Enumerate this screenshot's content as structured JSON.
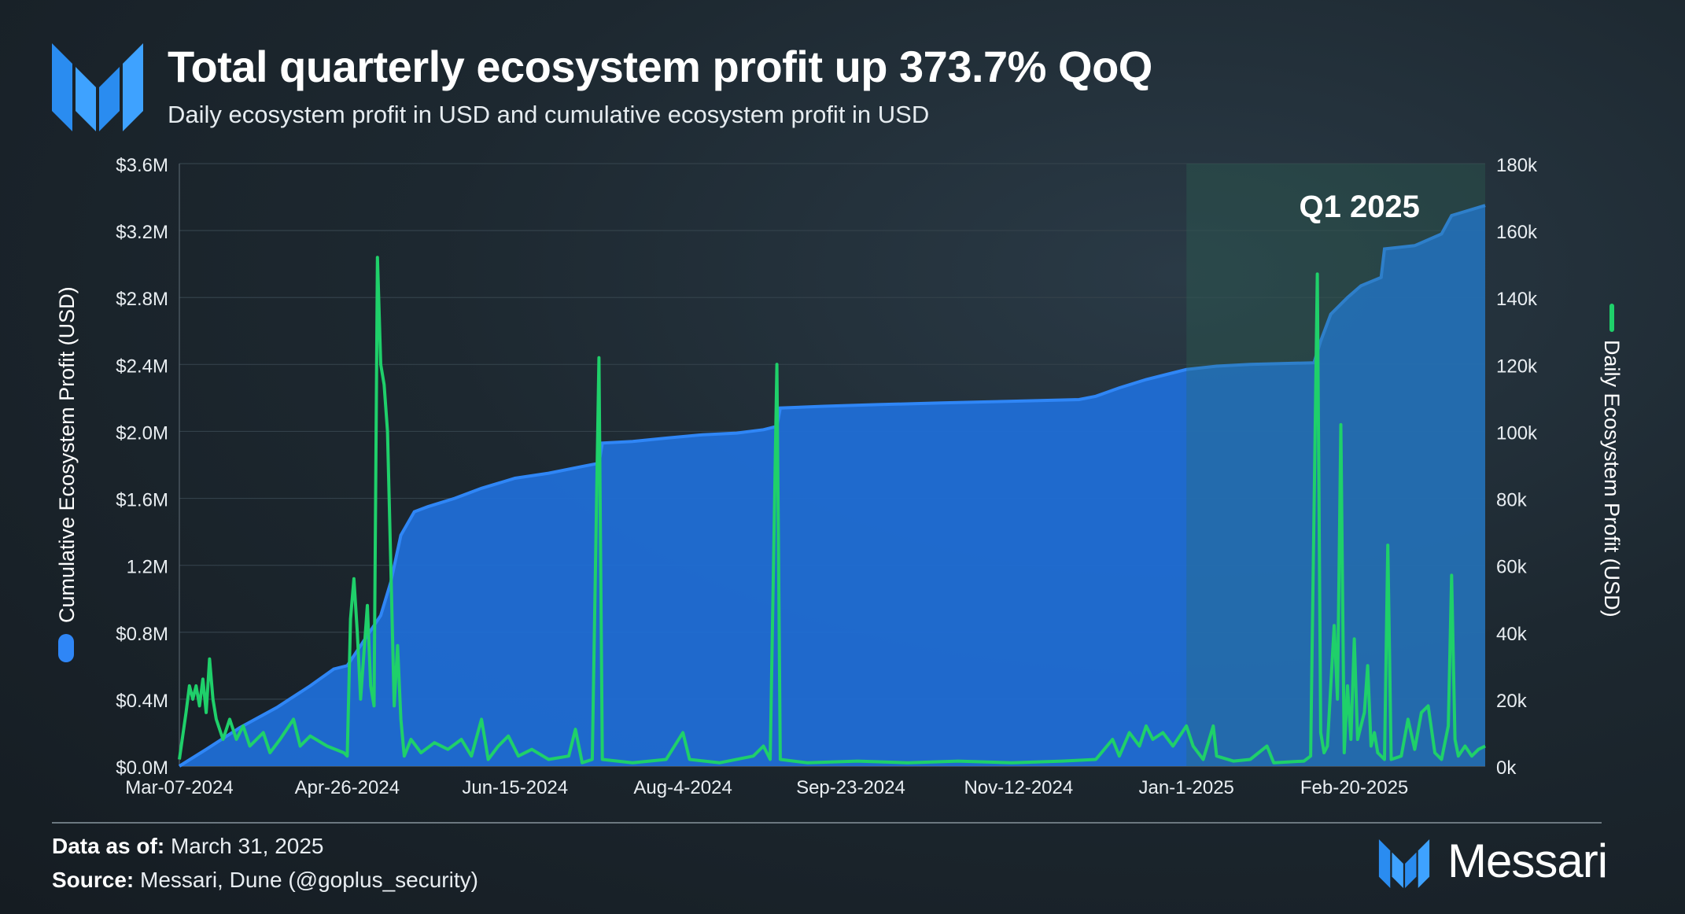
{
  "header": {
    "title": "Total quarterly ecosystem profit up 373.7% QoQ",
    "subtitle": "Daily ecosystem profit in USD and cumulative ecosystem profit in USD"
  },
  "footer": {
    "date_label": "Data as of:",
    "date_value": "March 31, 2025",
    "source_label": "Source:",
    "source_value": "Messari, Dune (@goplus_security)"
  },
  "brand": {
    "name": "Messari",
    "logo_icon": "messari-logo-icon"
  },
  "colors": {
    "cumulative_fill": "#1f6fd8",
    "cumulative_line": "#2f86f6",
    "daily_line": "#1fd06a",
    "q1_band": "#2d6e5a"
  },
  "chart_data": {
    "type": "area",
    "title": "Total quarterly ecosystem profit up 373.7% QoQ",
    "subtitle": "Daily ecosystem profit in USD and cumulative ecosystem profit in USD",
    "x_tick_labels": [
      "Mar-07-2024",
      "Apr-26-2024",
      "Jun-15-2024",
      "Aug-4-2024",
      "Sep-23-2024",
      "Nov-12-2024",
      "Jan-1-2025",
      "Feb-20-2025"
    ],
    "x_range": [
      "2024-03-07",
      "2025-03-31"
    ],
    "y_left_label": "Cumulative Ecosystem Profit (USD)",
    "y_left_ticks": [
      "$0.0M",
      "$0.4M",
      "$0.8M",
      "1.2M",
      "$1.6M",
      "$2.0M",
      "$2.4M",
      "$2.8M",
      "$3.2M",
      "$3.6M"
    ],
    "y_left_range": [
      0,
      3600000
    ],
    "y_right_label": "Daily Ecosystem Profit (USD)",
    "y_right_ticks": [
      "0k",
      "20k",
      "40k",
      "60k",
      "80k",
      "100k",
      "120k",
      "140k",
      "160k",
      "180k"
    ],
    "y_right_range": [
      0,
      180000
    ],
    "grid": true,
    "annotation": {
      "text": "Q1 2025",
      "start": "2025-01-01",
      "end": "2025-03-31"
    },
    "series": [
      {
        "name": "Cumulative Ecosystem Profit (USD)",
        "axis": "left",
        "style": "area",
        "points": [
          [
            "2024-03-07",
            0
          ],
          [
            "2024-03-15",
            100000
          ],
          [
            "2024-03-25",
            230000
          ],
          [
            "2024-04-05",
            350000
          ],
          [
            "2024-04-15",
            480000
          ],
          [
            "2024-04-22",
            580000
          ],
          [
            "2024-04-26",
            600000
          ],
          [
            "2024-05-01",
            750000
          ],
          [
            "2024-05-06",
            900000
          ],
          [
            "2024-05-09",
            1100000
          ],
          [
            "2024-05-12",
            1380000
          ],
          [
            "2024-05-16",
            1520000
          ],
          [
            "2024-05-20",
            1550000
          ],
          [
            "2024-05-28",
            1600000
          ],
          [
            "2024-06-05",
            1660000
          ],
          [
            "2024-06-15",
            1720000
          ],
          [
            "2024-06-25",
            1750000
          ],
          [
            "2024-07-05",
            1790000
          ],
          [
            "2024-07-10",
            1810000
          ],
          [
            "2024-07-11",
            1930000
          ],
          [
            "2024-07-20",
            1940000
          ],
          [
            "2024-07-30",
            1960000
          ],
          [
            "2024-08-10",
            1980000
          ],
          [
            "2024-08-20",
            1990000
          ],
          [
            "2024-08-28",
            2010000
          ],
          [
            "2024-09-01",
            2030000
          ],
          [
            "2024-09-02",
            2140000
          ],
          [
            "2024-09-15",
            2150000
          ],
          [
            "2024-10-01",
            2160000
          ],
          [
            "2024-10-20",
            2170000
          ],
          [
            "2024-11-10",
            2180000
          ],
          [
            "2024-11-30",
            2190000
          ],
          [
            "2024-12-05",
            2210000
          ],
          [
            "2024-12-12",
            2260000
          ],
          [
            "2024-12-20",
            2310000
          ],
          [
            "2024-12-28",
            2350000
          ],
          [
            "2025-01-01",
            2370000
          ],
          [
            "2025-01-10",
            2390000
          ],
          [
            "2025-01-20",
            2400000
          ],
          [
            "2025-02-08",
            2410000
          ],
          [
            "2025-02-10",
            2540000
          ],
          [
            "2025-02-13",
            2700000
          ],
          [
            "2025-02-18",
            2800000
          ],
          [
            "2025-02-22",
            2870000
          ],
          [
            "2025-02-28",
            2920000
          ],
          [
            "2025-03-01",
            3090000
          ],
          [
            "2025-03-10",
            3110000
          ],
          [
            "2025-03-18",
            3180000
          ],
          [
            "2025-03-21",
            3290000
          ],
          [
            "2025-03-31",
            3350000
          ]
        ]
      },
      {
        "name": "Daily Ecosystem Profit (USD)",
        "axis": "right",
        "style": "line",
        "points": [
          [
            "2024-03-07",
            2000
          ],
          [
            "2024-03-09",
            16000
          ],
          [
            "2024-03-10",
            24000
          ],
          [
            "2024-03-11",
            20000
          ],
          [
            "2024-03-12",
            24000
          ],
          [
            "2024-03-13",
            18000
          ],
          [
            "2024-03-14",
            26000
          ],
          [
            "2024-03-15",
            16000
          ],
          [
            "2024-03-16",
            32000
          ],
          [
            "2024-03-17",
            20000
          ],
          [
            "2024-03-18",
            14000
          ],
          [
            "2024-03-20",
            8000
          ],
          [
            "2024-03-22",
            14000
          ],
          [
            "2024-03-24",
            8000
          ],
          [
            "2024-03-26",
            12000
          ],
          [
            "2024-03-28",
            6000
          ],
          [
            "2024-04-01",
            10000
          ],
          [
            "2024-04-03",
            4000
          ],
          [
            "2024-04-06",
            8000
          ],
          [
            "2024-04-10",
            14000
          ],
          [
            "2024-04-12",
            6000
          ],
          [
            "2024-04-15",
            9000
          ],
          [
            "2024-04-20",
            6000
          ],
          [
            "2024-04-25",
            4000
          ],
          [
            "2024-04-26",
            3000
          ],
          [
            "2024-04-27",
            44000
          ],
          [
            "2024-04-28",
            56000
          ],
          [
            "2024-04-29",
            40000
          ],
          [
            "2024-04-30",
            20000
          ],
          [
            "2024-05-02",
            48000
          ],
          [
            "2024-05-03",
            24000
          ],
          [
            "2024-05-04",
            18000
          ],
          [
            "2024-05-05",
            152000
          ],
          [
            "2024-05-06",
            120000
          ],
          [
            "2024-05-07",
            114000
          ],
          [
            "2024-05-08",
            100000
          ],
          [
            "2024-05-09",
            60000
          ],
          [
            "2024-05-10",
            18000
          ],
          [
            "2024-05-11",
            36000
          ],
          [
            "2024-05-12",
            14000
          ],
          [
            "2024-05-13",
            3000
          ],
          [
            "2024-05-15",
            8000
          ],
          [
            "2024-05-18",
            4000
          ],
          [
            "2024-05-22",
            7000
          ],
          [
            "2024-05-26",
            5000
          ],
          [
            "2024-05-30",
            8000
          ],
          [
            "2024-06-02",
            3000
          ],
          [
            "2024-06-05",
            14000
          ],
          [
            "2024-06-07",
            2000
          ],
          [
            "2024-06-10",
            6000
          ],
          [
            "2024-06-13",
            9000
          ],
          [
            "2024-06-16",
            3000
          ],
          [
            "2024-06-20",
            5000
          ],
          [
            "2024-06-25",
            2000
          ],
          [
            "2024-07-01",
            3000
          ],
          [
            "2024-07-03",
            11000
          ],
          [
            "2024-07-05",
            1000
          ],
          [
            "2024-07-08",
            2000
          ],
          [
            "2024-07-10",
            122000
          ],
          [
            "2024-07-11",
            2000
          ],
          [
            "2024-07-20",
            1000
          ],
          [
            "2024-07-30",
            2000
          ],
          [
            "2024-08-04",
            10000
          ],
          [
            "2024-08-06",
            2000
          ],
          [
            "2024-08-15",
            1000
          ],
          [
            "2024-08-25",
            3000
          ],
          [
            "2024-08-28",
            6000
          ],
          [
            "2024-08-30",
            2000
          ],
          [
            "2024-09-01",
            120000
          ],
          [
            "2024-09-02",
            2000
          ],
          [
            "2024-09-10",
            1000
          ],
          [
            "2024-09-25",
            1500
          ],
          [
            "2024-10-10",
            1000
          ],
          [
            "2024-10-25",
            1500
          ],
          [
            "2024-11-10",
            1000
          ],
          [
            "2024-11-25",
            1500
          ],
          [
            "2024-12-05",
            2000
          ],
          [
            "2024-12-10",
            8000
          ],
          [
            "2024-12-12",
            3000
          ],
          [
            "2024-12-15",
            10000
          ],
          [
            "2024-12-18",
            6000
          ],
          [
            "2024-12-20",
            12000
          ],
          [
            "2024-12-22",
            8000
          ],
          [
            "2024-12-25",
            10000
          ],
          [
            "2024-12-28",
            6000
          ],
          [
            "2025-01-01",
            12000
          ],
          [
            "2025-01-03",
            6000
          ],
          [
            "2025-01-06",
            2000
          ],
          [
            "2025-01-09",
            12000
          ],
          [
            "2025-01-10",
            3000
          ],
          [
            "2025-01-15",
            1500
          ],
          [
            "2025-01-20",
            2000
          ],
          [
            "2025-01-25",
            6000
          ],
          [
            "2025-01-27",
            1000
          ],
          [
            "2025-02-05",
            1500
          ],
          [
            "2025-02-07",
            3000
          ],
          [
            "2025-02-09",
            147000
          ],
          [
            "2025-02-10",
            10000
          ],
          [
            "2025-02-11",
            4000
          ],
          [
            "2025-02-12",
            6000
          ],
          [
            "2025-02-14",
            42000
          ],
          [
            "2025-02-15",
            20000
          ],
          [
            "2025-02-16",
            102000
          ],
          [
            "2025-02-17",
            4000
          ],
          [
            "2025-02-18",
            24000
          ],
          [
            "2025-02-19",
            8000
          ],
          [
            "2025-02-20",
            38000
          ],
          [
            "2025-02-21",
            8000
          ],
          [
            "2025-02-23",
            16000
          ],
          [
            "2025-02-24",
            30000
          ],
          [
            "2025-02-25",
            6000
          ],
          [
            "2025-02-26",
            10000
          ],
          [
            "2025-02-27",
            4000
          ],
          [
            "2025-03-01",
            2000
          ],
          [
            "2025-03-02",
            66000
          ],
          [
            "2025-03-03",
            2000
          ],
          [
            "2025-03-06",
            3000
          ],
          [
            "2025-03-08",
            14000
          ],
          [
            "2025-03-10",
            5000
          ],
          [
            "2025-03-12",
            16000
          ],
          [
            "2025-03-14",
            18000
          ],
          [
            "2025-03-16",
            4000
          ],
          [
            "2025-03-18",
            2000
          ],
          [
            "2025-03-20",
            12000
          ],
          [
            "2025-03-21",
            57000
          ],
          [
            "2025-03-22",
            8000
          ],
          [
            "2025-03-23",
            3000
          ],
          [
            "2025-03-25",
            6000
          ],
          [
            "2025-03-27",
            3000
          ],
          [
            "2025-03-29",
            5000
          ],
          [
            "2025-03-31",
            6000
          ]
        ]
      }
    ]
  }
}
